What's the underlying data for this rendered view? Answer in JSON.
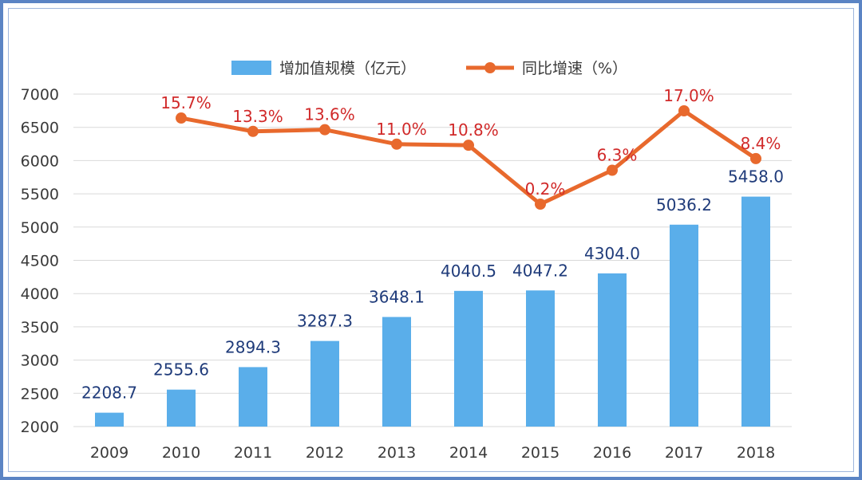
{
  "chart_data": {
    "type": "bar",
    "categories": [
      "2009",
      "2010",
      "2011",
      "2012",
      "2013",
      "2014",
      "2015",
      "2016",
      "2017",
      "2018"
    ],
    "series": [
      {
        "name": "增加值规模（亿元）",
        "type": "bar",
        "values": [
          2208.7,
          2555.6,
          2894.3,
          3287.3,
          3648.1,
          4040.5,
          4047.2,
          4304.0,
          5036.2,
          5458.0
        ],
        "labels": [
          "2208.7",
          "2555.6",
          "2894.3",
          "3287.3",
          "3648.1",
          "4040.5",
          "4047.2",
          "4304.0",
          "5036.2",
          "5458.0"
        ],
        "color": "#5aaeea",
        "label_color": "#1f3b7a"
      },
      {
        "name": "同比增速（%）",
        "type": "line",
        "values": [
          null,
          15.7,
          13.3,
          13.6,
          11.0,
          10.8,
          0.2,
          6.3,
          17.0,
          8.4
        ],
        "labels": [
          "",
          "15.7%",
          "13.3%",
          "13.6%",
          "11.0%",
          "10.8%",
          "0.2%",
          "6.3%",
          "17.0%",
          "8.4%"
        ],
        "color": "#e8692d",
        "label_color": "#d12a2a"
      }
    ],
    "yticks": [
      "2000",
      "2500",
      "3000",
      "3500",
      "4000",
      "4500",
      "5000",
      "5500",
      "6000",
      "6500",
      "7000"
    ],
    "ylim": [
      2000,
      7000
    ],
    "grid": true,
    "legend_position": "top",
    "colors": {
      "axis_text": "#3a3a3a",
      "grid": "#d9d9d9",
      "frame": "#5b84c4"
    }
  }
}
